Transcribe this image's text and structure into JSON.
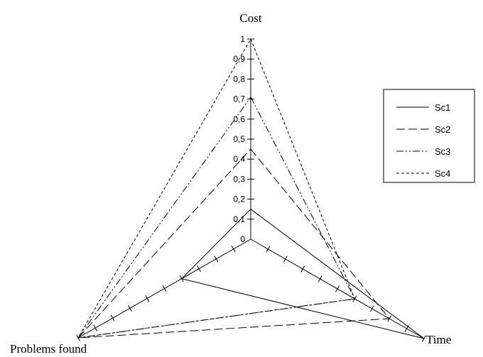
{
  "chart_data": {
    "type": "radar",
    "axes": [
      "Cost",
      "Time",
      "Problems found"
    ],
    "range": [
      0,
      1
    ],
    "ticks": [
      "0",
      "0,1",
      "0,2",
      "0,3",
      "0,4",
      "0,5",
      "0,6",
      "0,7",
      "0,8",
      "0,9",
      "1"
    ],
    "series": [
      {
        "name": "Sc1",
        "values": [
          0.15,
          1.0,
          0.4
        ],
        "dash": ""
      },
      {
        "name": "Sc2",
        "values": [
          0.45,
          0.8,
          1.0
        ],
        "dash": "12 5"
      },
      {
        "name": "Sc3",
        "values": [
          0.71,
          0.6,
          1.0
        ],
        "dash": "10 3 2 3 2 3"
      },
      {
        "name": "Sc4",
        "values": [
          1.0,
          0.6,
          1.0
        ],
        "dash": "4 3"
      }
    ],
    "legend_position": "right"
  }
}
